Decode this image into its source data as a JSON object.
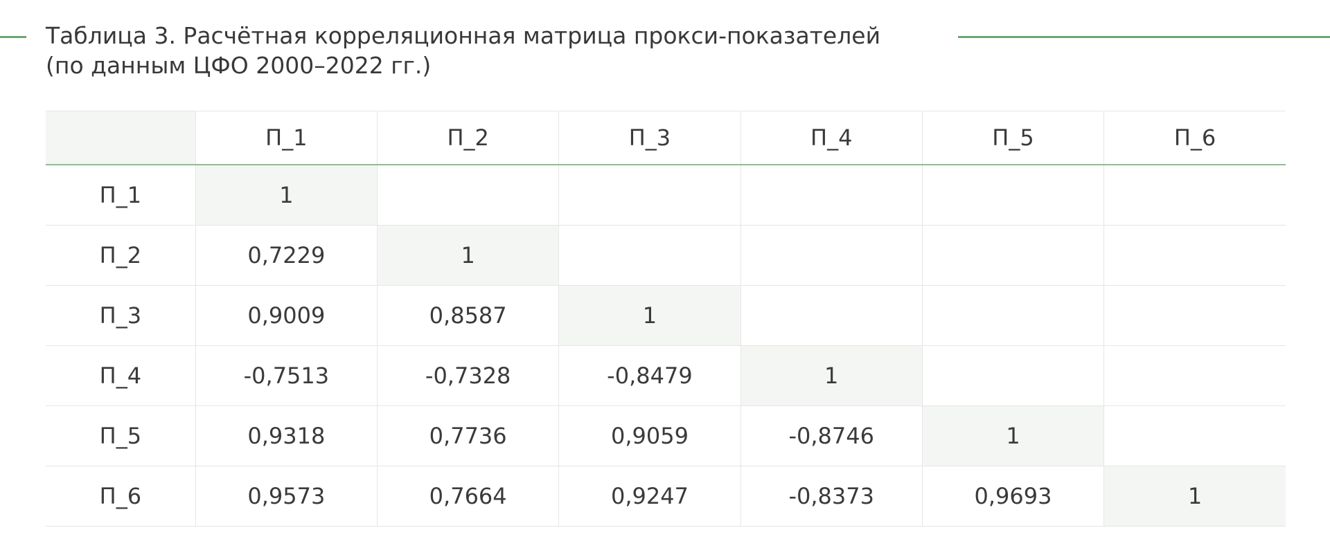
{
  "caption": {
    "line1": "Таблица 3. Расчётная корреляционная матрица прокси-показателей",
    "line2": "(по данным ЦФО 2000–2022 гг.)"
  },
  "colors": {
    "accent_rule": "#6aa66e",
    "diagonal_fill": "#f4f6f3",
    "text": "#333333"
  },
  "table": {
    "headers": [
      "",
      "П_1",
      "П_2",
      "П_3",
      "П_4",
      "П_5",
      "П_6"
    ],
    "rows": [
      {
        "label": "П_1",
        "cells": [
          "1",
          "",
          "",
          "",
          "",
          ""
        ]
      },
      {
        "label": "П_2",
        "cells": [
          "0,7229",
          "1",
          "",
          "",
          "",
          ""
        ]
      },
      {
        "label": "П_3",
        "cells": [
          "0,9009",
          "0,8587",
          "1",
          "",
          "",
          ""
        ]
      },
      {
        "label": "П_4",
        "cells": [
          "-0,7513",
          "-0,7328",
          "-0,8479",
          "1",
          "",
          ""
        ]
      },
      {
        "label": "П_5",
        "cells": [
          "0,9318",
          "0,7736",
          "0,9059",
          "-0,8746",
          "1",
          ""
        ]
      },
      {
        "label": "П_6",
        "cells": [
          "0,9573",
          "0,7664",
          "0,9247",
          "-0,8373",
          "0,9693",
          "1"
        ]
      }
    ]
  }
}
